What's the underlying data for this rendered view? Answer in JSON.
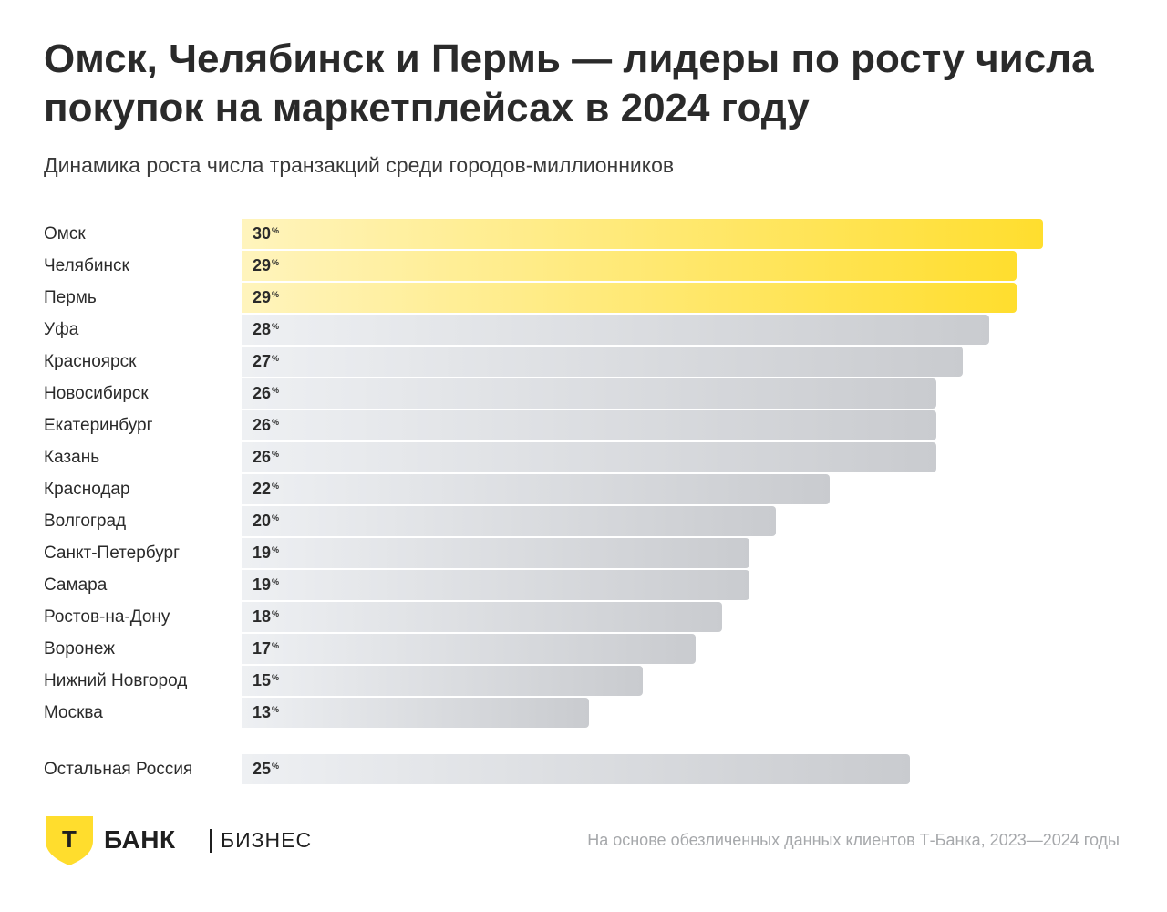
{
  "title": "Омск, Челябинск и Пермь — лидеры по росту числа покупок на маркетплейсах в 2024 году",
  "subtitle": "Динамика роста числа транзакций среди городов-миллионников",
  "chart_data": {
    "type": "bar",
    "orientation": "horizontal",
    "title": "Омск, Челябинск и Пермь — лидеры по росту числа покупок на маркетплейсах в 2024 году",
    "subtitle": "Динамика роста числа транзакций среди городов-миллионников",
    "value_suffix": "%",
    "categories": [
      "Омск",
      "Челябинск",
      "Пермь",
      "Уфа",
      "Красноярск",
      "Новосибирск",
      "Екатеринбург",
      "Казань",
      "Краснодар",
      "Волгоград",
      "Санкт-Петербург",
      "Самара",
      "Ростов-на-Дону",
      "Воронеж",
      "Нижний Новгород",
      "Москва"
    ],
    "values": [
      30,
      29,
      29,
      28,
      27,
      26,
      26,
      26,
      22,
      20,
      19,
      19,
      18,
      17,
      15,
      13
    ],
    "highlighted": [
      "Омск",
      "Челябинск",
      "Пермь"
    ],
    "highlight_color": "#ffdd2d",
    "bar_color": "#c9cbcf",
    "reference": {
      "category": "Остальная Россия",
      "value": 25
    },
    "grid": false,
    "legend": "none"
  },
  "footer": {
    "logo_letter": "Т",
    "logo_bank": "БАНК",
    "logo_business": "БИЗНЕС",
    "source": "На основе обезличенных данных клиентов Т-Банка, 2023—2024 годы"
  }
}
